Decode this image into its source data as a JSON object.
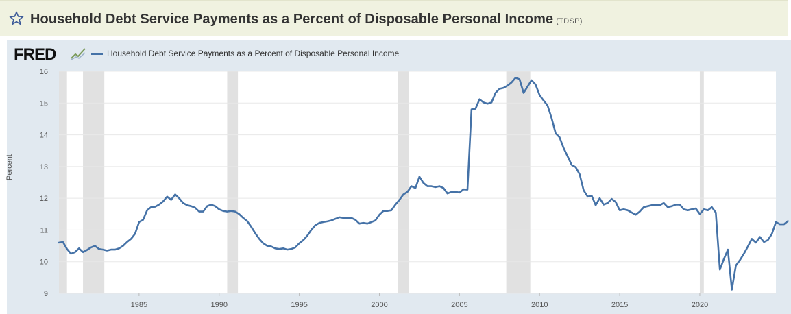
{
  "header": {
    "title": "Household Debt Service Payments as a Percent of Disposable Personal Income",
    "series_id": "(TDSP)",
    "star_icon": "star-outline-icon"
  },
  "branding": {
    "logo_text": "FRED",
    "logo_mark_icon": "fred-trend-line-icon"
  },
  "colors": {
    "series": "#4572a7",
    "plot_bg": "#ffffff",
    "outer_bg": "#e1e9f0",
    "recession": "#e1e1e1",
    "title_bar": "#f0f2e0"
  },
  "chart_data": {
    "type": "line",
    "title": "",
    "xlabel": "",
    "ylabel": "Percent",
    "legend": "top-left",
    "grid": true,
    "ylim": [
      9,
      16
    ],
    "xlim": [
      1980.0,
      2024.75
    ],
    "yticks": [
      "9",
      "10",
      "11",
      "12",
      "13",
      "14",
      "15",
      "16"
    ],
    "xticks": [
      "1985",
      "1990",
      "1995",
      "2000",
      "2005",
      "2010",
      "2015",
      "2020"
    ],
    "recessions": [
      [
        1980.0,
        1980.5
      ],
      [
        1981.5,
        1982.83
      ],
      [
        1990.5,
        1991.17
      ],
      [
        2001.17,
        2001.83
      ],
      [
        2007.92,
        2009.42
      ],
      [
        2020.0,
        2020.25
      ]
    ],
    "series": [
      {
        "name": "Household Debt Service Payments as a Percent of Disposable Personal Income",
        "x_start": 1980.0,
        "x_step": 0.25,
        "values": [
          10.6,
          10.62,
          10.4,
          10.25,
          10.3,
          10.42,
          10.3,
          10.37,
          10.45,
          10.5,
          10.4,
          10.38,
          10.35,
          10.38,
          10.38,
          10.42,
          10.5,
          10.62,
          10.72,
          10.88,
          11.25,
          11.32,
          11.62,
          11.72,
          11.73,
          11.8,
          11.9,
          12.05,
          11.95,
          12.12,
          12.0,
          11.85,
          11.78,
          11.75,
          11.7,
          11.58,
          11.58,
          11.75,
          11.8,
          11.75,
          11.65,
          11.6,
          11.58,
          11.6,
          11.58,
          11.5,
          11.38,
          11.28,
          11.1,
          10.9,
          10.72,
          10.58,
          10.5,
          10.48,
          10.42,
          10.4,
          10.42,
          10.38,
          10.4,
          10.45,
          10.58,
          10.68,
          10.82,
          11.0,
          11.15,
          11.22,
          11.25,
          11.27,
          11.3,
          11.35,
          11.4,
          11.38,
          11.38,
          11.38,
          11.32,
          11.2,
          11.22,
          11.2,
          11.25,
          11.3,
          11.48,
          11.6,
          11.6,
          11.62,
          11.8,
          11.95,
          12.12,
          12.2,
          12.38,
          12.32,
          12.68,
          12.48,
          12.38,
          12.38,
          12.35,
          12.38,
          12.32,
          12.15,
          12.2,
          12.2,
          12.18,
          12.28,
          12.27,
          14.8,
          14.82,
          15.12,
          15.02,
          14.98,
          15.02,
          15.32,
          15.45,
          15.48,
          15.55,
          15.65,
          15.8,
          15.75,
          15.32,
          15.52,
          15.72,
          15.58,
          15.25,
          15.08,
          14.92,
          14.52,
          14.05,
          13.92,
          13.58,
          13.32,
          13.05,
          12.98,
          12.75,
          12.25,
          12.05,
          12.08,
          11.78,
          12.0,
          11.8,
          11.85,
          11.98,
          11.88,
          11.62,
          11.65,
          11.62,
          11.55,
          11.48,
          11.58,
          11.72,
          11.75,
          11.78,
          11.78,
          11.78,
          11.85,
          11.72,
          11.75,
          11.8,
          11.8,
          11.65,
          11.62,
          11.65,
          11.68,
          11.5,
          11.65,
          11.62,
          11.72,
          11.55,
          9.75,
          10.08,
          10.38,
          9.12,
          9.88,
          10.05,
          10.25,
          10.48,
          10.72,
          10.6,
          10.78,
          10.62,
          10.68,
          10.88,
          11.25,
          11.18,
          11.18,
          11.28
        ]
      }
    ]
  }
}
